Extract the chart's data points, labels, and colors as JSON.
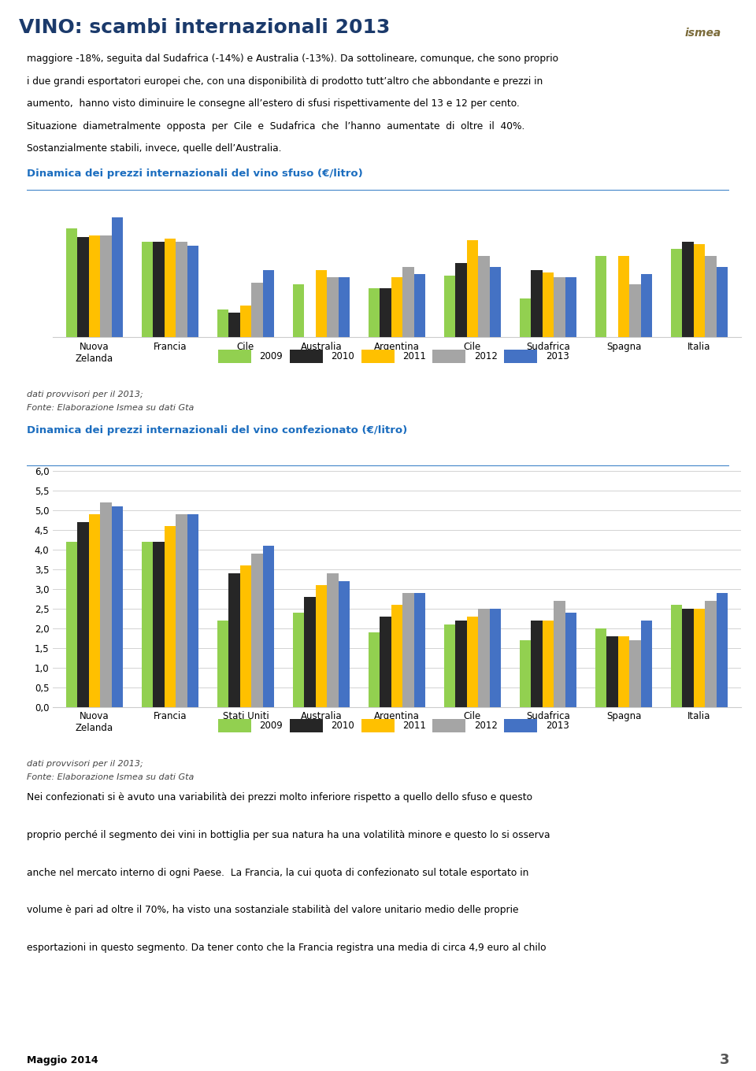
{
  "title": "VINO: scambi internazionali 2013",
  "title_color": "#1B3A6B",
  "header_bg_left": "#C8C8C8",
  "header_bg_right": "#808080",
  "body_text": [
    "maggiore -18%, seguita dal Sudafrica (-14%) e Australia (-13%). Da sottolineare, comunque, che sono proprio",
    "i due grandi esportatori europei che, con una disponibilità di prodotto tutt’altro che abbondante e prezzi in",
    "aumento,  hanno visto diminuire le consegne all’estero di sfusi rispettivamente del 13 e 12 per cento.",
    "Situazione  diametralmente  opposta  per  Cile  e  Sudafrica  che  l’hanno  aumentate  di  oltre  il  40%.",
    "Sostanzialmente stabili, invece, quelle dell’Australia."
  ],
  "chart1_title": "Dinamica dei prezzi internazionali del vino sfuso (€/litro)",
  "sfuso_categories": [
    "Nuova\nZelanda",
    "Francia",
    "Cile",
    "Australia",
    "Argentina",
    "Cile",
    "Sudafrica",
    "Spagna",
    "Italia"
  ],
  "sfuso_2009": [
    0.62,
    0.54,
    0.16,
    0.3,
    0.28,
    0.35,
    0.22,
    0.46,
    0.5
  ],
  "sfuso_2010": [
    0.57,
    0.54,
    0.14,
    0.0,
    0.28,
    0.42,
    0.38,
    0.0,
    0.54
  ],
  "sfuso_2011": [
    0.58,
    0.56,
    0.18,
    0.38,
    0.34,
    0.55,
    0.37,
    0.46,
    0.53
  ],
  "sfuso_2012": [
    0.58,
    0.54,
    0.31,
    0.34,
    0.4,
    0.46,
    0.34,
    0.3,
    0.46
  ],
  "sfuso_2013": [
    0.68,
    0.52,
    0.38,
    0.34,
    0.36,
    0.4,
    0.34,
    0.36,
    0.4
  ],
  "chart2_title": "Dinamica dei prezzi internazionali del vino confezionato (€/litro)",
  "conf_categories": [
    "Nuova\nZelanda",
    "Francia",
    "Stati Uniti",
    "Australia",
    "Argentina",
    "Cile",
    "Sudafrica",
    "Spagna",
    "Italia"
  ],
  "conf_2009": [
    4.2,
    4.2,
    2.2,
    2.4,
    1.9,
    2.1,
    1.7,
    2.0,
    2.6
  ],
  "conf_2010": [
    4.7,
    4.2,
    3.4,
    2.8,
    2.3,
    2.2,
    2.2,
    1.8,
    2.5
  ],
  "conf_2011": [
    4.9,
    4.6,
    3.6,
    3.1,
    2.6,
    2.3,
    2.2,
    1.8,
    2.5
  ],
  "conf_2012": [
    5.2,
    4.9,
    3.9,
    3.4,
    2.9,
    2.5,
    2.7,
    1.7,
    2.7
  ],
  "conf_2013": [
    5.1,
    4.9,
    4.1,
    3.2,
    2.9,
    2.5,
    2.4,
    2.2,
    2.9
  ],
  "chart2_yticks": [
    0.0,
    0.5,
    1.0,
    1.5,
    2.0,
    2.5,
    3.0,
    3.5,
    4.0,
    4.5,
    5.0,
    5.5,
    6.0
  ],
  "color_2009": "#92D050",
  "color_2010": "#262626",
  "color_2011": "#FFC000",
  "color_2012": "#A5A5A5",
  "color_2013": "#4472C4",
  "legend_labels": [
    "2009",
    "2010",
    "2011",
    "2012",
    "2013"
  ],
  "footer_text1": "dati provvisori per il 2013;",
  "footer_text2": "Fonte: Elaborazione Ismea su dati Gta",
  "bottom_text": [
    "Nei confezionati si è avuto una variabilità dei prezzi molto inferiore rispetto a quello dello sfuso e questo",
    "proprio perché il segmento dei vini in bottiglia per sua natura ha una volatilità minore e questo lo si osserva",
    "anche nel mercato interno di ogni Paese.  La Francia, la cui quota di confezionato sul totale esportato in",
    "volume è pari ad oltre il 70%, ha visto una sostanziale stabilità del valore unitario medio delle proprie",
    "esportazioni in questo segmento. Da tener conto che la Francia registra una media di circa 4,9 euro al chilo"
  ],
  "page_number": "3",
  "bottom_bar_color": "#FFC000",
  "bottom_label": "Maggio 2014"
}
